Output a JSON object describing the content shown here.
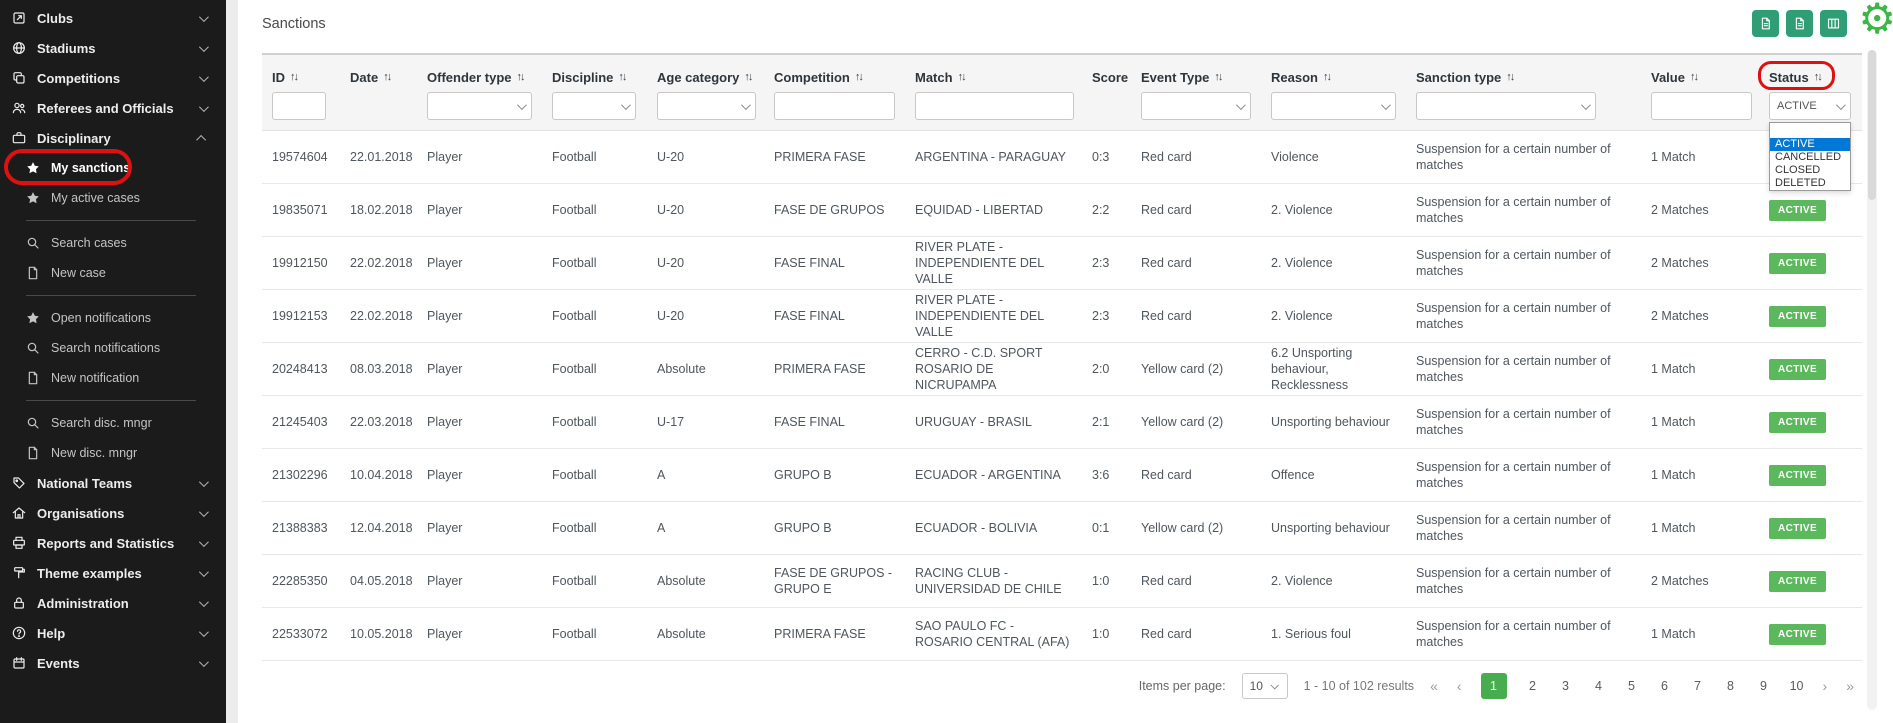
{
  "page": {
    "title": "Sanctions"
  },
  "colors": {
    "sidebar_bg": "#1b1b1b",
    "badge_green": "#5cb85c",
    "toolbar_button_green": "#2f9e77",
    "gear_green": "#3db549",
    "active_page_green": "#48ad4e",
    "dropdown_highlight_blue": "#0078d7",
    "annotation_red": "#dd1111"
  },
  "sidebar": {
    "items": [
      {
        "type": "item",
        "icon": "clubs-icon",
        "label": "Clubs",
        "chevron": "down"
      },
      {
        "type": "item",
        "icon": "stadiums-icon",
        "label": "Stadiums",
        "chevron": "down"
      },
      {
        "type": "item",
        "icon": "competitions-icon",
        "label": "Competitions",
        "chevron": "down"
      },
      {
        "type": "item",
        "icon": "referees-icon",
        "label": "Referees and Officials",
        "chevron": "down"
      },
      {
        "type": "item",
        "icon": "disciplinary-icon",
        "label": "Disciplinary",
        "chevron": "up"
      },
      {
        "type": "sub",
        "icon": "star-icon",
        "label": "My sanctions",
        "emphasis": true,
        "annotated": true
      },
      {
        "type": "sub",
        "icon": "star-icon",
        "label": "My active cases"
      },
      {
        "type": "divider"
      },
      {
        "type": "sub",
        "icon": "search-icon",
        "label": "Search cases"
      },
      {
        "type": "sub",
        "icon": "document-icon",
        "label": "New case"
      },
      {
        "type": "divider"
      },
      {
        "type": "sub",
        "icon": "star-icon",
        "label": "Open notifications"
      },
      {
        "type": "sub",
        "icon": "search-icon",
        "label": "Search notifications"
      },
      {
        "type": "sub",
        "icon": "document-icon",
        "label": "New notification"
      },
      {
        "type": "divider"
      },
      {
        "type": "sub",
        "icon": "search-icon",
        "label": "Search disc. mngr"
      },
      {
        "type": "sub",
        "icon": "document-icon",
        "label": "New disc. mngr"
      },
      {
        "type": "item",
        "icon": "national-teams-icon",
        "label": "National Teams",
        "chevron": "down"
      },
      {
        "type": "item",
        "icon": "organisations-icon",
        "label": "Organisations",
        "chevron": "down"
      },
      {
        "type": "item",
        "icon": "reports-icon",
        "label": "Reports and Statistics",
        "chevron": "down"
      },
      {
        "type": "item",
        "icon": "theme-icon",
        "label": "Theme examples",
        "chevron": "down"
      },
      {
        "type": "item",
        "icon": "administration-icon",
        "label": "Administration",
        "chevron": "down"
      },
      {
        "type": "item",
        "icon": "help-icon",
        "label": "Help",
        "chevron": "down"
      },
      {
        "type": "item",
        "icon": "events-icon",
        "label": "Events",
        "chevron": "down"
      }
    ]
  },
  "toolbar": {
    "buttons": [
      {
        "name": "export-pdf-button",
        "icon": "file-icon"
      },
      {
        "name": "export-excel-button",
        "icon": "file-icon"
      },
      {
        "name": "column-visibility-button",
        "icon": "columns-icon"
      }
    ]
  },
  "table": {
    "columns": [
      {
        "label": "ID"
      },
      {
        "label": "Date"
      },
      {
        "label": "Offender type"
      },
      {
        "label": "Discipline"
      },
      {
        "label": "Age category"
      },
      {
        "label": "Competition"
      },
      {
        "label": "Match"
      },
      {
        "label": "Score"
      },
      {
        "label": "Event Type"
      },
      {
        "label": "Reason"
      },
      {
        "label": "Sanction type"
      },
      {
        "label": "Value"
      },
      {
        "label": "Status",
        "annotated": true
      }
    ],
    "status_filter": {
      "selected": "ACTIVE",
      "options": [
        "",
        "ACTIVE",
        "CANCELLED",
        "CLOSED",
        "DELETED"
      ],
      "highlighted_option": "ACTIVE"
    },
    "rows": [
      {
        "id": "19574604",
        "date": "22.01.2018",
        "offender_type": "Player",
        "discipline": "Football",
        "age_category": "U-20",
        "competition": "PRIMERA FASE",
        "match": "ARGENTINA - PARAGUAY",
        "score": "0:3",
        "event_type": "Red card",
        "reason": "Violence",
        "sanction_type": "Suspension for a certain number of matches",
        "value": "1 Match",
        "status": "ACTIVE"
      },
      {
        "id": "19835071",
        "date": "18.02.2018",
        "offender_type": "Player",
        "discipline": "Football",
        "age_category": "U-20",
        "competition": "FASE DE GRUPOS",
        "match": "EQUIDAD - LIBERTAD",
        "score": "2:2",
        "event_type": "Red card",
        "reason": "2. Violence",
        "sanction_type": "Suspension for a certain number of matches",
        "value": "2 Matches",
        "status": "ACTIVE"
      },
      {
        "id": "19912150",
        "date": "22.02.2018",
        "offender_type": "Player",
        "discipline": "Football",
        "age_category": "U-20",
        "competition": "FASE FINAL",
        "match": "RIVER PLATE - INDEPENDIENTE DEL VALLE",
        "score": "2:3",
        "event_type": "Red card",
        "reason": "2. Violence",
        "sanction_type": "Suspension for a certain number of matches",
        "value": "2 Matches",
        "status": "ACTIVE"
      },
      {
        "id": "19912153",
        "date": "22.02.2018",
        "offender_type": "Player",
        "discipline": "Football",
        "age_category": "U-20",
        "competition": "FASE FINAL",
        "match": "RIVER PLATE - INDEPENDIENTE DEL VALLE",
        "score": "2:3",
        "event_type": "Red card",
        "reason": "2. Violence",
        "sanction_type": "Suspension for a certain number of matches",
        "value": "2 Matches",
        "status": "ACTIVE"
      },
      {
        "id": "20248413",
        "date": "08.03.2018",
        "offender_type": "Player",
        "discipline": "Football",
        "age_category": "Absolute",
        "competition": "PRIMERA FASE",
        "match": "CERRO - C.D. SPORT ROSARIO DE NICRUPAMPA",
        "score": "2:0",
        "event_type": "Yellow card (2)",
        "reason": "6.2 Unsporting behaviour, Recklessness",
        "sanction_type": "Suspension for a certain number of matches",
        "value": "1 Match",
        "status": "ACTIVE"
      },
      {
        "id": "21245403",
        "date": "22.03.2018",
        "offender_type": "Player",
        "discipline": "Football",
        "age_category": "U-17",
        "competition": "FASE FINAL",
        "match": "URUGUAY - BRASIL",
        "score": "2:1",
        "event_type": "Yellow card (2)",
        "reason": "Unsporting behaviour",
        "sanction_type": "Suspension for a certain number of matches",
        "value": "1 Match",
        "status": "ACTIVE"
      },
      {
        "id": "21302296",
        "date": "10.04.2018",
        "offender_type": "Player",
        "discipline": "Football",
        "age_category": "A",
        "competition": "GRUPO B",
        "match": "ECUADOR - ARGENTINA",
        "score": "3:6",
        "event_type": "Red card",
        "reason": "Offence",
        "sanction_type": "Suspension for a certain number of matches",
        "value": "1 Match",
        "status": "ACTIVE"
      },
      {
        "id": "21388383",
        "date": "12.04.2018",
        "offender_type": "Player",
        "discipline": "Football",
        "age_category": "A",
        "competition": "GRUPO B",
        "match": "ECUADOR - BOLIVIA",
        "score": "0:1",
        "event_type": "Yellow card (2)",
        "reason": "Unsporting behaviour",
        "sanction_type": "Suspension for a certain number of matches",
        "value": "1 Match",
        "status": "ACTIVE"
      },
      {
        "id": "22285350",
        "date": "04.05.2018",
        "offender_type": "Player",
        "discipline": "Football",
        "age_category": "Absolute",
        "competition": "FASE DE GRUPOS - GRUPO E",
        "match": "RACING CLUB - UNIVERSIDAD DE CHILE",
        "score": "1:0",
        "event_type": "Red card",
        "reason": "2. Violence",
        "sanction_type": "Suspension for a certain number of matches",
        "value": "2 Matches",
        "status": "ACTIVE"
      },
      {
        "id": "22533072",
        "date": "10.05.2018",
        "offender_type": "Player",
        "discipline": "Football",
        "age_category": "Absolute",
        "competition": "PRIMERA FASE",
        "match": "SAO PAULO FC - ROSARIO CENTRAL (AFA)",
        "score": "1:0",
        "event_type": "Red card",
        "reason": "1. Serious foul",
        "sanction_type": "Suspension for a certain number of matches",
        "value": "1 Match",
        "status": "ACTIVE"
      }
    ]
  },
  "pagination": {
    "items_per_page_label": "Items per page:",
    "items_per_page_value": "10",
    "results_text": "1 - 10 of 102 results",
    "first": "«",
    "prev": "‹",
    "next": "›",
    "last": "»",
    "pages": [
      "1",
      "2",
      "3",
      "4",
      "5",
      "6",
      "7",
      "8",
      "9",
      "10"
    ],
    "active_page": "1"
  }
}
